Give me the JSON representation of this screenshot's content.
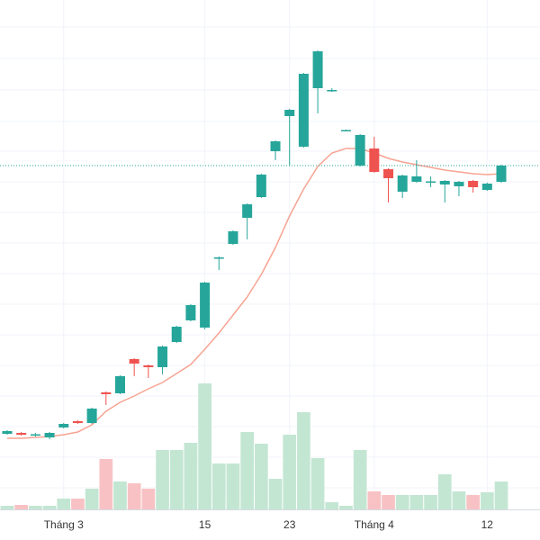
{
  "chart_data": {
    "type": "candlestick",
    "categories": [
      null,
      null,
      null,
      null,
      "Tháng 3",
      null,
      null,
      null,
      null,
      null,
      null,
      null,
      null,
      null,
      "15",
      null,
      null,
      null,
      null,
      null,
      "23",
      null,
      null,
      null,
      null,
      null,
      "Tháng 4",
      null,
      null,
      null,
      null,
      null,
      null,
      null,
      "12",
      null
    ],
    "open": [
      118,
      119,
      117,
      114,
      125,
      132,
      130,
      164,
      163,
      201,
      194,
      192,
      220,
      244,
      236,
      313,
      329,
      358,
      381,
      432,
      471,
      437,
      502,
      499,
      455,
      416,
      435,
      412,
      387,
      398,
      398,
      395,
      393,
      399,
      389,
      398
    ],
    "high": [
      122,
      120,
      119,
      120,
      130,
      133,
      147,
      165,
      183,
      202,
      195,
      216,
      238,
      262,
      287,
      315,
      344,
      374,
      407,
      444,
      479,
      519,
      544,
      502,
      456,
      451,
      448,
      413,
      406,
      422,
      404,
      400,
      399,
      400,
      397,
      417
    ],
    "low": [
      117,
      116,
      115,
      112,
      124,
      129,
      129,
      150,
      162,
      182,
      180,
      184,
      219,
      243,
      234,
      300,
      328,
      334,
      380,
      422,
      416,
      436,
      474,
      498,
      454,
      415,
      408,
      375,
      380,
      397,
      392,
      375,
      382,
      386,
      388,
      397
    ],
    "close": [
      121,
      117,
      117.5,
      119,
      129,
      130,
      146,
      162,
      182,
      196,
      192,
      215,
      237,
      261,
      286,
      314,
      343,
      373,
      406,
      443,
      478,
      518,
      543,
      500,
      455.5,
      450,
      409,
      402,
      405,
      404,
      398.5,
      399,
      398,
      392,
      396,
      416
    ],
    "ma": [
      113,
      113,
      114,
      115,
      117,
      120,
      128,
      143,
      153,
      160,
      168,
      175,
      185,
      195,
      212,
      230,
      250,
      270,
      295,
      325,
      360,
      390,
      415,
      430,
      435,
      435,
      430,
      424,
      420,
      417,
      414,
      411,
      409,
      407,
      406,
      407
    ],
    "volume": [
      4,
      5,
      4,
      4,
      12,
      12,
      23,
      56,
      31,
      29,
      23,
      66,
      66,
      74,
      140,
      51,
      51,
      86,
      73,
      34,
      83,
      108,
      57,
      8,
      4,
      66,
      20,
      16,
      16,
      16,
      16,
      39,
      20,
      16,
      19,
      31
    ],
    "ylim": [
      0,
      600
    ],
    "volume_lim": [
      0,
      566
    ],
    "up_color": "#26a69a",
    "down_color": "#ef5350",
    "ma_color": "#f7a392",
    "volume_up_color": "#c3e6d3",
    "volume_down_color": "#f8c2c4",
    "last_line_color": "#26a69a"
  }
}
